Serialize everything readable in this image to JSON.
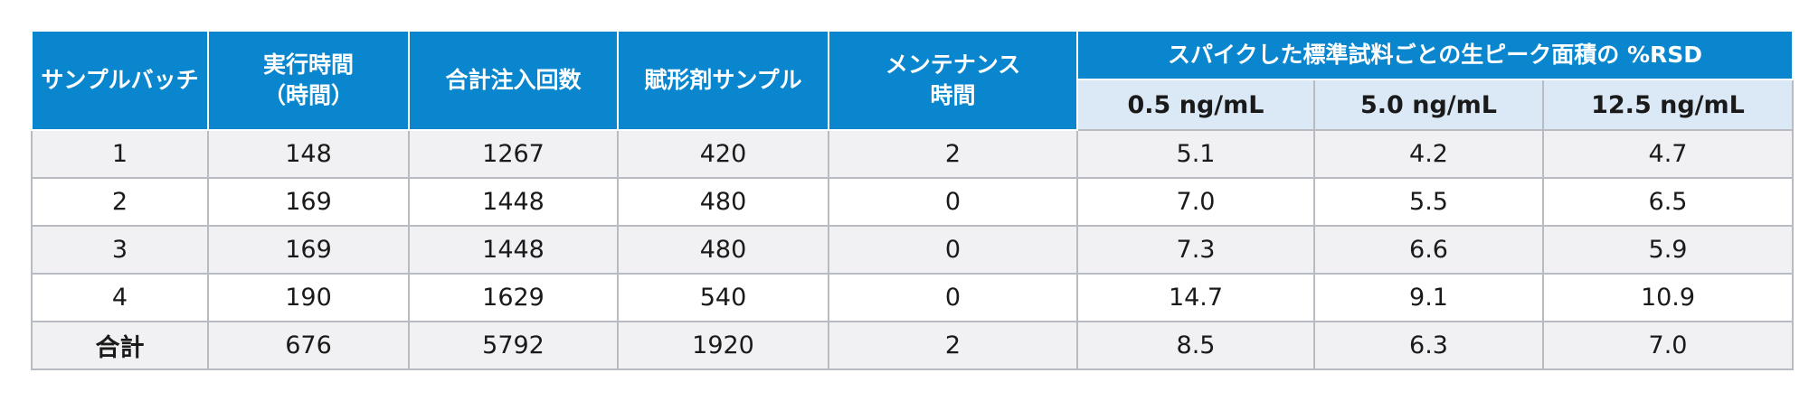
{
  "headers": {
    "batch": "サンプルバッチ",
    "runtime_line1": "実行時間",
    "runtime_line2": "（時間）",
    "injections": "合計注入回数",
    "excipient": "賦形剤サンプル",
    "maintenance_line1": "メンテナンス",
    "maintenance_line2": "時間",
    "rsd_group": "スパイクした標準試料ごとの生ピーク面積の %RSD",
    "conc": [
      "0.5 ng/mL",
      "5.0 ng/mL",
      "12.5 ng/mL"
    ]
  },
  "rows": [
    [
      "1",
      "148",
      "1267",
      "420",
      "2",
      "5.1",
      "4.2",
      "4.7"
    ],
    [
      "2",
      "169",
      "1448",
      "480",
      "0",
      "7.0",
      "5.5",
      "6.5"
    ],
    [
      "3",
      "169",
      "1448",
      "480",
      "0",
      "7.3",
      "6.6",
      "5.9"
    ],
    [
      "4",
      "190",
      "1629",
      "540",
      "0",
      "14.7",
      "9.1",
      "10.9"
    ]
  ],
  "total": [
    "合計",
    "676",
    "5792",
    "1920",
    "2",
    "8.5",
    "6.3",
    "7.0"
  ],
  "colors": {
    "header_blue": "#0a86cf",
    "subheader_blue": "#dbe9f6",
    "row_gray": "#f1f1f3",
    "border": "#b8bcc2"
  }
}
